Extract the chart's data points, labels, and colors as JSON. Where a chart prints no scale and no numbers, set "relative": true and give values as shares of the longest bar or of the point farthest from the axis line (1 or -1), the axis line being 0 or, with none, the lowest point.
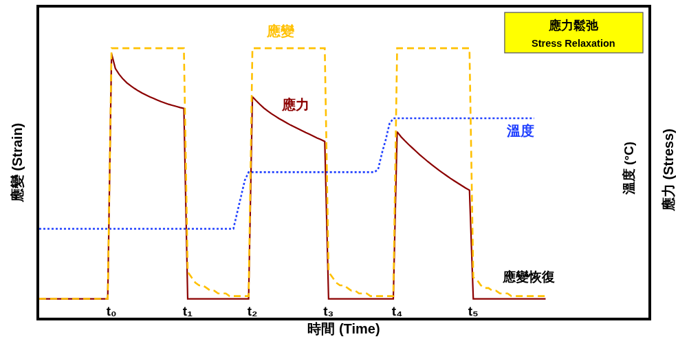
{
  "chart_data": {
    "type": "line",
    "relative": true,
    "title": "應力鬆弛",
    "subtitle": "Stress Relaxation",
    "xlabel": "時間 (Time)",
    "ylabel": "應變 (Strain)",
    "y2label": "溫度 (°C)",
    "y3label": "應力 (Stress)",
    "categories": [
      null,
      null,
      null,
      null,
      null,
      null,
      null,
      null,
      null,
      null,
      null,
      null,
      null,
      null,
      null,
      null,
      null,
      null,
      null,
      "t₀",
      null,
      null,
      null,
      null,
      null,
      null,
      null,
      null,
      null,
      null,
      null,
      null,
      null,
      null,
      null,
      null,
      null,
      null,
      null,
      "t₁",
      null,
      null,
      null,
      null,
      null,
      null,
      null,
      null,
      null,
      null,
      null,
      null,
      null,
      null,
      null,
      null,
      "t₂",
      null,
      null,
      null,
      null,
      null,
      null,
      null,
      null,
      null,
      null,
      null,
      null,
      null,
      null,
      null,
      null,
      null,
      null,
      null,
      "t₃",
      null,
      null,
      null,
      null,
      null,
      null,
      null,
      null,
      null,
      null,
      null,
      null,
      null,
      null,
      null,
      null,
      null,
      "t₄",
      null,
      null,
      null,
      null,
      null,
      null,
      null,
      null,
      null,
      null,
      null,
      null,
      null,
      null,
      null,
      null,
      null,
      null,
      null,
      "t₅",
      null,
      null,
      null,
      null,
      null,
      null,
      null,
      null,
      null,
      null,
      null,
      null,
      null,
      null,
      null,
      null,
      null,
      null,
      null,
      null,
      null,
      null,
      null,
      null,
      null,
      null,
      null,
      null,
      null,
      null,
      null,
      null,
      null,
      null,
      null,
      null,
      null,
      null,
      null,
      null,
      null,
      null,
      null,
      null,
      null,
      null
    ],
    "tick_labels": "x",
    "legend": false,
    "marker": "none",
    "annotations": [
      "應變恢復"
    ],
    "series": [
      {
        "name": "溫度",
        "color": "#1f3fff",
        "line_style": "dotted",
        "values": [
          0.33,
          0.33,
          0.33,
          0.33,
          0.33,
          0.33,
          0.33,
          0.33,
          0.33,
          0.33,
          0.33,
          0.33,
          0.33,
          0.33,
          0.33,
          0.33,
          0.33,
          0.33,
          0.33,
          0.33,
          0.33,
          0.33,
          0.33,
          0.33,
          0.33,
          0.33,
          0.33,
          0.33,
          0.33,
          0.33,
          0.33,
          0.33,
          0.33,
          0.33,
          0.33,
          0.33,
          0.33,
          0.33,
          0.33,
          0.33,
          0.33,
          0.33,
          0.33,
          0.33,
          0.33,
          0.33,
          0.33,
          0.33,
          0.33,
          0.33,
          0.33,
          0.33,
          0.39,
          0.45,
          0.51,
          0.54,
          0.54,
          0.54,
          0.54,
          0.54,
          0.54,
          0.54,
          0.54,
          0.54,
          0.54,
          0.54,
          0.54,
          0.54,
          0.54,
          0.54,
          0.54,
          0.54,
          0.54,
          0.54,
          0.54,
          0.54,
          0.54,
          0.54,
          0.54,
          0.54,
          0.54,
          0.54,
          0.54,
          0.54,
          0.54,
          0.54,
          0.54,
          0.54,
          0.54,
          0.55,
          0.61,
          0.66,
          0.72,
          0.74,
          0.74,
          0.74,
          0.74,
          0.74,
          0.74,
          0.74,
          0.74,
          0.74,
          0.74,
          0.74,
          0.74,
          0.74,
          0.74,
          0.74,
          0.74,
          0.74,
          0.74,
          0.74,
          0.74,
          0.74,
          0.74,
          0.74,
          0.74,
          0.74,
          0.74,
          0.74,
          0.74,
          0.74,
          0.74,
          0.74,
          0.74,
          0.74,
          0.74,
          0.74,
          0.74,
          0.74,
          0.74,
          null,
          null,
          null,
          null,
          null,
          null,
          null,
          null,
          null,
          null,
          null,
          null,
          null,
          null,
          null,
          null,
          null,
          null,
          null,
          null,
          null,
          null,
          null,
          null,
          null,
          null,
          null,
          null,
          null,
          null
        ]
      },
      {
        "name": "應力",
        "color": "#8b0000",
        "line_style": "solid",
        "values": [
          0.07,
          0.07,
          0.07,
          0.07,
          0.07,
          0.07,
          0.07,
          0.07,
          0.07,
          0.07,
          0.07,
          0.07,
          0.07,
          0.07,
          0.07,
          0.07,
          0.07,
          0.07,
          0.07,
          0.98,
          0.925,
          0.903,
          0.886,
          0.872,
          0.861,
          0.851,
          0.842,
          0.834,
          0.827,
          0.82,
          0.814,
          0.808,
          0.802,
          0.797,
          0.792,
          0.788,
          0.784,
          0.78,
          0.777,
          0.07,
          0.07,
          0.07,
          0.07,
          0.07,
          0.07,
          0.07,
          0.07,
          0.07,
          0.07,
          0.07,
          0.07,
          0.07,
          0.07,
          0.07,
          0.07,
          0.07,
          0.82,
          0.805,
          0.791,
          0.778,
          0.767,
          0.757,
          0.748,
          0.739,
          0.731,
          0.723,
          0.715,
          0.708,
          0.701,
          0.694,
          0.687,
          0.681,
          0.674,
          0.667,
          0.661,
          0.654,
          0.07,
          0.07,
          0.07,
          0.07,
          0.07,
          0.07,
          0.07,
          0.07,
          0.07,
          0.07,
          0.07,
          0.07,
          0.07,
          0.07,
          0.07,
          0.07,
          0.07,
          0.07,
          0.69,
          0.672,
          0.657,
          0.643,
          0.63,
          0.617,
          0.604,
          0.592,
          0.58,
          0.569,
          0.558,
          0.547,
          0.537,
          0.527,
          0.517,
          0.508,
          0.499,
          0.49,
          0.481,
          0.473,
          0.07,
          0.07,
          0.07,
          0.07,
          0.07,
          0.07,
          0.07,
          0.07,
          0.07,
          0.07,
          0.07,
          0.07,
          0.07,
          0.07,
          0.07,
          0.07,
          0.07,
          0.07,
          0.07,
          0.07,
          null,
          null,
          null,
          null,
          null,
          null,
          null,
          null,
          null,
          null,
          null,
          null,
          null,
          null,
          null,
          null,
          null,
          null,
          null,
          null,
          null,
          null,
          null,
          null,
          null,
          null,
          null
        ]
      },
      {
        "name": "應變",
        "color": "#ffc000",
        "line_style": "dashed",
        "values": [
          0.07,
          0.07,
          0.07,
          0.07,
          0.07,
          0.07,
          0.07,
          0.07,
          0.07,
          0.07,
          0.07,
          0.07,
          0.07,
          0.07,
          0.07,
          0.07,
          0.07,
          0.07,
          0.07,
          1.0,
          1.0,
          1.0,
          1.0,
          1.0,
          1.0,
          1.0,
          1.0,
          1.0,
          1.0,
          1.0,
          1.0,
          1.0,
          1.0,
          1.0,
          1.0,
          1.0,
          1.0,
          1.0,
          1.0,
          0.17,
          0.15,
          0.13,
          0.12,
          0.12,
          0.11,
          0.1,
          0.1,
          0.09,
          0.09,
          0.09,
          0.08,
          0.08,
          0.08,
          0.08,
          0.08,
          0.08,
          1.0,
          1.0,
          1.0,
          1.0,
          1.0,
          1.0,
          1.0,
          1.0,
          1.0,
          1.0,
          1.0,
          1.0,
          1.0,
          1.0,
          1.0,
          1.0,
          1.0,
          1.0,
          1.0,
          1.0,
          0.17,
          0.15,
          0.13,
          0.12,
          0.12,
          0.11,
          0.1,
          0.1,
          0.09,
          0.09,
          0.09,
          0.08,
          0.08,
          0.08,
          0.08,
          0.08,
          0.08,
          0.08,
          1.0,
          1.0,
          1.0,
          1.0,
          1.0,
          1.0,
          1.0,
          1.0,
          1.0,
          1.0,
          1.0,
          1.0,
          1.0,
          1.0,
          1.0,
          1.0,
          1.0,
          1.0,
          1.0,
          1.0,
          0.15,
          0.14,
          0.12,
          0.11,
          0.11,
          0.1,
          0.1,
          0.09,
          0.09,
          0.09,
          0.08,
          0.08,
          0.08,
          0.08,
          0.08,
          0.08,
          0.08,
          0.08,
          0.08,
          0.08,
          null,
          null,
          null,
          null,
          null,
          null,
          null,
          null,
          null,
          null,
          null,
          null,
          null,
          null,
          null,
          null,
          null,
          null,
          null,
          null,
          null,
          null,
          null,
          null,
          null,
          null,
          null
        ]
      }
    ]
  }
}
